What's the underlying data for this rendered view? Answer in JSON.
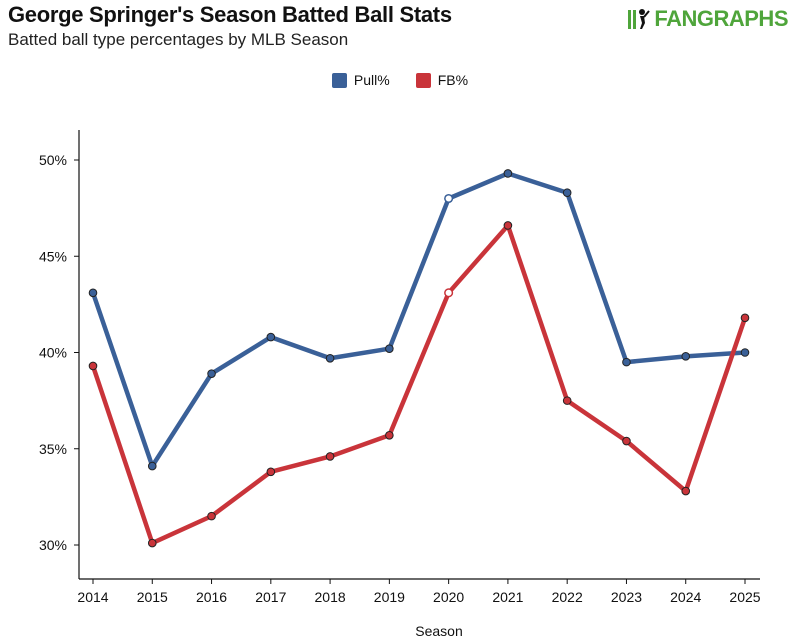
{
  "header": {
    "title": "George Springer's Season Batted Ball Stats",
    "subtitle": "Batted ball type percentages by MLB Season",
    "brand": "FANGRAPHS"
  },
  "colors": {
    "pull": "#3a6098",
    "fb": "#c9343a",
    "brand": "#4fa53b"
  },
  "chart_data": {
    "type": "line",
    "title": "George Springer's Season Batted Ball Stats",
    "subtitle": "Batted ball type percentages by MLB Season",
    "xlabel": "Season",
    "ylabel": "",
    "categories": [
      "2014",
      "2015",
      "2016",
      "2017",
      "2018",
      "2019",
      "2020",
      "2021",
      "2022",
      "2023",
      "2024",
      "2025"
    ],
    "ylim": [
      29,
      52
    ],
    "yticks": [
      30,
      35,
      40,
      45,
      50
    ],
    "ytick_labels": [
      "30%",
      "35%",
      "40%",
      "45%",
      "50%"
    ],
    "legend_position": "top-center",
    "grid": false,
    "series": [
      {
        "name": "Pull%",
        "color": "#3a6098",
        "values": [
          43.1,
          34.1,
          38.9,
          40.8,
          39.7,
          40.2,
          48.0,
          49.3,
          48.3,
          39.5,
          39.8,
          40.0
        ],
        "hollow_points": [
          6
        ]
      },
      {
        "name": "FB%",
        "color": "#c9343a",
        "values": [
          39.3,
          30.1,
          31.5,
          33.8,
          34.6,
          35.7,
          43.1,
          46.6,
          37.5,
          35.4,
          32.8,
          41.8
        ],
        "hollow_points": [
          6
        ]
      }
    ]
  }
}
